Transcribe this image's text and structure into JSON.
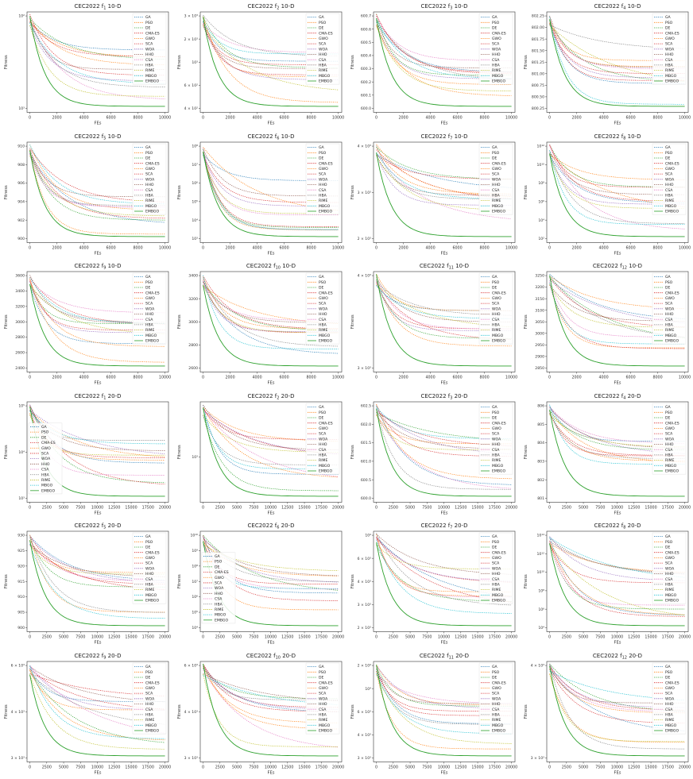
{
  "figure": {
    "legend_labels": [
      "GA",
      "PSO",
      "DE",
      "CMA-ES",
      "GWO",
      "SCA",
      "WOA",
      "HHO",
      "CSA",
      "HBA",
      "RIME",
      "MBGO",
      "EMBGO"
    ],
    "colors": {
      "GA": "#1f77b4",
      "PSO": "#ff7f0e",
      "DE": "#2ca02c",
      "CMA-ES": "#d62728",
      "GWO": "#ff7f0e",
      "SCA": "#d62728",
      "WOA": "#9467bd",
      "HHO": "#8c564b",
      "CSA": "#e377c2",
      "HBA": "#7f7f7f",
      "RIME": "#bcbd22",
      "MBGO": "#17becf",
      "EMBGO": "#2ca02c"
    }
  },
  "chart_data": [
    {
      "type": "line",
      "title": "CEC2022 f1 10-D",
      "title_base": "CEC2022 f",
      "title_sub": "1",
      "title_tail": " 10-D",
      "xlabel": "FEs",
      "ylabel": "Fitness",
      "xmax": 10000,
      "xticks": [
        "0",
        "2000",
        "4000",
        "6000",
        "8000",
        "10000"
      ],
      "yticks": [
        "10²",
        "10³"
      ],
      "yscale": "log",
      "legend": "top-right"
    },
    {
      "type": "line",
      "title": "CEC2022 f2 10-D",
      "title_base": "CEC2022 f",
      "title_sub": "2",
      "title_tail": " 10-D",
      "xlabel": "FEs",
      "ylabel": "Fitness",
      "xmax": 10000,
      "xticks": [
        "0",
        "2000",
        "4000",
        "6000",
        "8000",
        "10000"
      ],
      "yticks": [
        "3 × 10³",
        "2 × 10³",
        "10³",
        "6 × 10²",
        "4 × 10²"
      ],
      "yscale": "log",
      "legend": "top-right"
    },
    {
      "type": "line",
      "title": "CEC2022 f3 10-D",
      "title_base": "CEC2022 f",
      "title_sub": "3",
      "title_tail": " 10-D",
      "xlabel": "FEs",
      "ylabel": "Fitness",
      "xmax": 10000,
      "xticks": [
        "0",
        "2000",
        "4000",
        "6000",
        "8000",
        "10000"
      ],
      "yticks": [
        "600.7",
        "600.6",
        "600.5",
        "600.4",
        "600.3",
        "600.2",
        "600.1",
        "600.0"
      ],
      "yscale": "linear",
      "legend": "top-right"
    },
    {
      "type": "line",
      "title": "CEC2022 f4 10-D",
      "title_base": "CEC2022 f",
      "title_sub": "4",
      "title_tail": " 10-D",
      "xlabel": "FEs",
      "ylabel": "Fitness",
      "xmax": 10000,
      "xticks": [
        "0",
        "2000",
        "4000",
        "6000",
        "8000",
        "10000"
      ],
      "yticks": [
        "802.25",
        "802.00",
        "801.75",
        "801.50",
        "801.25",
        "801.00",
        "800.75",
        "800.50",
        "800.25"
      ],
      "yscale": "linear",
      "legend": "top-right"
    },
    {
      "type": "line",
      "title": "CEC2022 f5 10-D",
      "title_base": "CEC2022 f",
      "title_sub": "5",
      "title_tail": " 10-D",
      "xlabel": "FEs",
      "ylabel": "Fitness",
      "xmax": 10000,
      "xticks": [
        "0",
        "2000",
        "4000",
        "6000",
        "8000",
        "10000"
      ],
      "yticks": [
        "910",
        "908",
        "906",
        "904",
        "902",
        "900"
      ],
      "yscale": "linear",
      "legend": "top-right"
    },
    {
      "type": "line",
      "title": "CEC2022 f6 10-D",
      "title_base": "CEC2022 f",
      "title_sub": "6",
      "title_tail": " 10-D",
      "xlabel": "FEs",
      "ylabel": "Fitness",
      "xmax": 10000,
      "xticks": [
        "0",
        "2000",
        "4000",
        "6000",
        "8000",
        "10000"
      ],
      "yticks": [
        "10⁸",
        "10⁷",
        "10⁶",
        "10⁵",
        "10⁴",
        "10³"
      ],
      "yscale": "log",
      "legend": "top-right"
    },
    {
      "type": "line",
      "title": "CEC2022 f7 10-D",
      "title_base": "CEC2022 f",
      "title_sub": "7",
      "title_tail": " 10-D",
      "xlabel": "FEs",
      "ylabel": "Fitness",
      "xmax": 10000,
      "xticks": [
        "0",
        "2000",
        "4000",
        "6000",
        "8000",
        "10000"
      ],
      "yticks": [
        "4 × 10³",
        "3 × 10³",
        "2 × 10³"
      ],
      "yscale": "log",
      "legend": "top-right"
    },
    {
      "type": "line",
      "title": "CEC2022 f8 10-D",
      "title_base": "CEC2022 f",
      "title_sub": "8",
      "title_tail": " 10-D",
      "xlabel": "FEs",
      "ylabel": "Fitness",
      "xmax": 10000,
      "xticks": [
        "0",
        "2000",
        "4000",
        "6000",
        "8000",
        "10000"
      ],
      "yticks": [
        "10¹²",
        "10¹⁰",
        "10⁸",
        "10⁶",
        "10⁴",
        "10²"
      ],
      "yscale": "log",
      "legend": "top-right"
    },
    {
      "type": "line",
      "title": "CEC2022 f9 10-D",
      "title_base": "CEC2022 f",
      "title_sub": "9",
      "title_tail": " 10-D",
      "xlabel": "FEs",
      "ylabel": "Fitness",
      "xmax": 10000,
      "xticks": [
        "0",
        "2000",
        "4000",
        "6000",
        "8000",
        "10000"
      ],
      "yticks": [
        "3600",
        "3400",
        "3200",
        "3000",
        "2800",
        "2600",
        "2400"
      ],
      "yscale": "linear",
      "legend": "top-right"
    },
    {
      "type": "line",
      "title": "CEC2022 f10 10-D",
      "title_base": "CEC2022 f",
      "title_sub": "10",
      "title_tail": " 10-D",
      "xlabel": "FEs",
      "ylabel": "Fitness",
      "xmax": 10000,
      "xticks": [
        "0",
        "2000",
        "4000",
        "6000",
        "8000",
        "10000"
      ],
      "yticks": [
        "3400",
        "3200",
        "3000",
        "2800",
        "2600"
      ],
      "yscale": "linear",
      "legend": "top-right"
    },
    {
      "type": "line",
      "title": "CEC2022 f11 10-D",
      "title_base": "CEC2022 f",
      "title_sub": "11",
      "title_tail": " 10-D",
      "xlabel": "FEs",
      "ylabel": "Fitness",
      "xmax": 10000,
      "xticks": [
        "0",
        "2000",
        "4000",
        "6000",
        "8000",
        "10000"
      ],
      "yticks": [
        "4 × 10³",
        "3 × 10³"
      ],
      "yscale": "log",
      "legend": "top-right"
    },
    {
      "type": "line",
      "title": "CEC2022 f12 10-D",
      "title_base": "CEC2022 f",
      "title_sub": "12",
      "title_tail": " 10-D",
      "xlabel": "FEs",
      "ylabel": "Fitness",
      "xmax": 10000,
      "xticks": [
        "0",
        "2000",
        "4000",
        "6000",
        "8000",
        "10000"
      ],
      "yticks": [
        "3250",
        "3200",
        "3150",
        "3100",
        "3050",
        "3000",
        "2950",
        "2900",
        "2850"
      ],
      "yscale": "linear",
      "legend": "top-right"
    },
    {
      "type": "line",
      "title": "CEC2022 f1 20-D",
      "title_base": "CEC2022 f",
      "title_sub": "1",
      "title_tail": " 20-D",
      "xlabel": "FEs",
      "ylabel": "Fitness",
      "xmax": 20000,
      "xticks": [
        "0",
        "2500",
        "5000",
        "7500",
        "10000",
        "12500",
        "15000",
        "17500",
        "20000"
      ],
      "yticks": [
        "10⁵",
        "10⁴",
        "10³"
      ],
      "yscale": "log",
      "legend": "center-left"
    },
    {
      "type": "line",
      "title": "CEC2022 f2 20-D",
      "title_base": "CEC2022 f",
      "title_sub": "2",
      "title_tail": " 20-D",
      "xlabel": "FEs",
      "ylabel": "Fitness",
      "xmax": 20000,
      "xticks": [
        "0",
        "2500",
        "5000",
        "7500",
        "10000",
        "12500",
        "15000",
        "17500",
        "20000"
      ],
      "yticks": [
        "10³"
      ],
      "yscale": "log",
      "legend": "top-right"
    },
    {
      "type": "line",
      "title": "CEC2022 f3 20-D",
      "title_base": "CEC2022 f",
      "title_sub": "3",
      "title_tail": " 20-D",
      "xlabel": "FEs",
      "ylabel": "Fitness",
      "xmax": 20000,
      "xticks": [
        "0",
        "2500",
        "5000",
        "7500",
        "10000",
        "12500",
        "15000",
        "17500",
        "20000"
      ],
      "yticks": [
        "602.5",
        "602.0",
        "601.5",
        "601.0",
        "600.5",
        "600.0"
      ],
      "yscale": "linear",
      "legend": "top-right"
    },
    {
      "type": "line",
      "title": "CEC2022 f4 20-D",
      "title_base": "CEC2022 f",
      "title_sub": "4",
      "title_tail": " 20-D",
      "xlabel": "FEs",
      "ylabel": "Fitness",
      "xmax": 20000,
      "xticks": [
        "0",
        "2500",
        "5000",
        "7500",
        "10000",
        "12500",
        "15000",
        "17500",
        "20000"
      ],
      "yticks": [
        "806",
        "805",
        "804",
        "803",
        "802",
        "801"
      ],
      "yscale": "linear",
      "legend": "top-right"
    },
    {
      "type": "line",
      "title": "CEC2022 f5 20-D",
      "title_base": "CEC2022 f",
      "title_sub": "5",
      "title_tail": " 20-D",
      "xlabel": "FEs",
      "ylabel": "Fitness",
      "xmax": 20000,
      "xticks": [
        "0",
        "2500",
        "5000",
        "7500",
        "10000",
        "12500",
        "15000",
        "17500",
        "20000"
      ],
      "yticks": [
        "930",
        "925",
        "920",
        "915",
        "910",
        "905",
        "900"
      ],
      "yscale": "linear",
      "legend": "top-right"
    },
    {
      "type": "line",
      "title": "CEC2022 f6 20-D",
      "title_base": "CEC2022 f",
      "title_sub": "6",
      "title_tail": " 20-D",
      "xlabel": "FEs",
      "ylabel": "Fitness",
      "xmax": 20000,
      "xticks": [
        "0",
        "2500",
        "5000",
        "7500",
        "10000",
        "12500",
        "15000",
        "17500",
        "20000"
      ],
      "yticks": [
        "10¹⁰",
        "10⁹",
        "10⁸",
        "10⁷",
        "10⁶",
        "10⁵",
        "10⁴"
      ],
      "yscale": "log",
      "legend": "center-left"
    },
    {
      "type": "line",
      "title": "CEC2022 f7 20-D",
      "title_base": "CEC2022 f",
      "title_sub": "7",
      "title_tail": " 20-D",
      "xlabel": "FEs",
      "ylabel": "Fitness",
      "xmax": 20000,
      "xticks": [
        "0",
        "2500",
        "5000",
        "7500",
        "10000",
        "12500",
        "15000",
        "17500",
        "20000"
      ],
      "yticks": [
        "10⁴",
        "6 × 10³",
        "4 × 10³",
        "3 × 10³",
        "2 × 10³"
      ],
      "yscale": "log",
      "legend": "top-right"
    },
    {
      "type": "line",
      "title": "CEC2022 f8 20-D",
      "title_base": "CEC2022 f",
      "title_sub": "8",
      "title_tail": " 20-D",
      "xlabel": "FEs",
      "ylabel": "Fitness",
      "xmax": 20000,
      "xticks": [
        "0",
        "2500",
        "5000",
        "7500",
        "10000",
        "12500",
        "15000",
        "17500",
        "20000"
      ],
      "yticks": [
        "10¹⁴",
        "10¹²",
        "10¹⁰",
        "10⁸",
        "10⁶",
        "10⁴"
      ],
      "yscale": "log",
      "legend": "top-right"
    },
    {
      "type": "line",
      "title": "CEC2022 f9 20-D",
      "title_base": "CEC2022 f",
      "title_sub": "9",
      "title_tail": " 20-D",
      "xlabel": "FEs",
      "ylabel": "Fitness",
      "xmax": 20000,
      "xticks": [
        "0",
        "2500",
        "5000",
        "7500",
        "10000",
        "12500",
        "15000",
        "17500",
        "20000"
      ],
      "yticks": [
        "6 × 10³",
        "4 × 10³",
        "3 × 10³"
      ],
      "yscale": "log",
      "legend": "top-right"
    },
    {
      "type": "line",
      "title": "CEC2022 f10 20-D",
      "title_base": "CEC2022 f",
      "title_sub": "10",
      "title_tail": " 20-D",
      "xlabel": "FEs",
      "ylabel": "Fitness",
      "xmax": 20000,
      "xticks": [
        "0",
        "2500",
        "5000",
        "7500",
        "10000",
        "12500",
        "15000",
        "17500",
        "20000"
      ],
      "yticks": [
        "6 × 10³",
        "4 × 10³",
        "3 × 10³"
      ],
      "yscale": "log",
      "legend": "top-right"
    },
    {
      "type": "line",
      "title": "CEC2022 f11 20-D",
      "title_base": "CEC2022 f",
      "title_sub": "11",
      "title_tail": " 20-D",
      "xlabel": "FEs",
      "ylabel": "Fitness",
      "xmax": 20000,
      "xticks": [
        "0",
        "2500",
        "5000",
        "7500",
        "10000",
        "12500",
        "15000",
        "17500",
        "20000"
      ],
      "yticks": [
        "2 × 10⁴",
        "10⁴",
        "6 × 10³",
        "4 × 10³",
        "3 × 10³"
      ],
      "yscale": "log",
      "legend": "top-right"
    },
    {
      "type": "line",
      "title": "CEC2022 f12 20-D",
      "title_base": "CEC2022 f",
      "title_sub": "12",
      "title_tail": " 20-D",
      "xlabel": "FEs",
      "ylabel": "Fitness",
      "xmax": 20000,
      "xticks": [
        "0",
        "2500",
        "5000",
        "7500",
        "10000",
        "12500",
        "15000",
        "17500",
        "20000"
      ],
      "yticks": [
        "4 × 10³",
        "3 × 10³"
      ],
      "yscale": "log",
      "legend": "top-right"
    }
  ]
}
